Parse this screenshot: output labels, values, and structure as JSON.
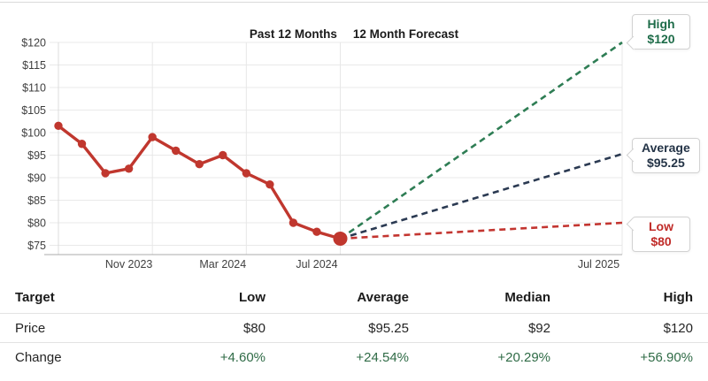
{
  "header": {
    "past_label": "Past 12 Months",
    "forecast_label": "12 Month Forecast"
  },
  "callouts": {
    "high": {
      "title": "High",
      "value": "$120"
    },
    "average": {
      "title": "Average",
      "value": "$95.25"
    },
    "low": {
      "title": "Low",
      "value": "$80"
    }
  },
  "colors": {
    "history_red": "#c0372e",
    "forecast_high_green": "#2e7d54",
    "forecast_avg_navy": "#2b3a52",
    "forecast_low_red": "#c33530",
    "callout_high_text": "#1e6c49",
    "callout_avg_text": "#243447",
    "callout_low_text": "#c02b28",
    "change_green": "#2f6b46",
    "axis_text": "#3f3f3f",
    "gridline": "#e9e9e9",
    "vertical_gridline": "#e7e7e7",
    "left_axis_line": "#dcdcdc",
    "axis_line": "#ababab"
  },
  "chart_data": {
    "type": "line",
    "title": "Past 12 Months / 12 Month Forecast",
    "y_axis": {
      "min": 75,
      "max": 120,
      "step": 5,
      "tick_prefix": "$",
      "ticks": [
        120,
        115,
        110,
        105,
        100,
        95,
        90,
        85,
        80,
        75
      ]
    },
    "x_axis": {
      "month_span": 24,
      "ticks": [
        {
          "label": "Nov 2023",
          "month": 3
        },
        {
          "label": "Mar 2024",
          "month": 7
        },
        {
          "label": "Jul 2024",
          "month": 11
        },
        {
          "label": "Jul 2025",
          "month": 23
        }
      ],
      "vertical_gridlines_month": [
        4,
        8,
        12,
        24
      ]
    },
    "history": {
      "name": "Price — Past 12 Months",
      "months": [
        0,
        1,
        2,
        3,
        4,
        5,
        6,
        7,
        8,
        9,
        10,
        11,
        12
      ],
      "values": [
        101.5,
        97.5,
        91,
        92,
        99,
        96,
        93,
        95,
        91,
        88.5,
        80,
        78,
        76.48
      ]
    },
    "forecast": [
      {
        "key": "high",
        "name": "High",
        "from_month": 12,
        "from_value": 76.48,
        "to_month": 24,
        "to_value": 120
      },
      {
        "key": "average",
        "name": "Average",
        "from_month": 12,
        "from_value": 76.48,
        "to_month": 24,
        "to_value": 95.25
      },
      {
        "key": "low",
        "name": "Low",
        "from_month": 12,
        "from_value": 76.48,
        "to_month": 24,
        "to_value": 80
      }
    ],
    "grid": true,
    "legend": "none (callout labels at line ends)"
  },
  "table": {
    "columns": [
      "Target",
      "Low",
      "Average",
      "Median",
      "High"
    ],
    "rows": [
      {
        "label": "Price",
        "values": [
          "$80",
          "$95.25",
          "$92",
          "$120"
        ]
      },
      {
        "label": "Change",
        "values": [
          "+4.60%",
          "+24.54%",
          "+20.29%",
          "+56.90%"
        ]
      }
    ]
  }
}
